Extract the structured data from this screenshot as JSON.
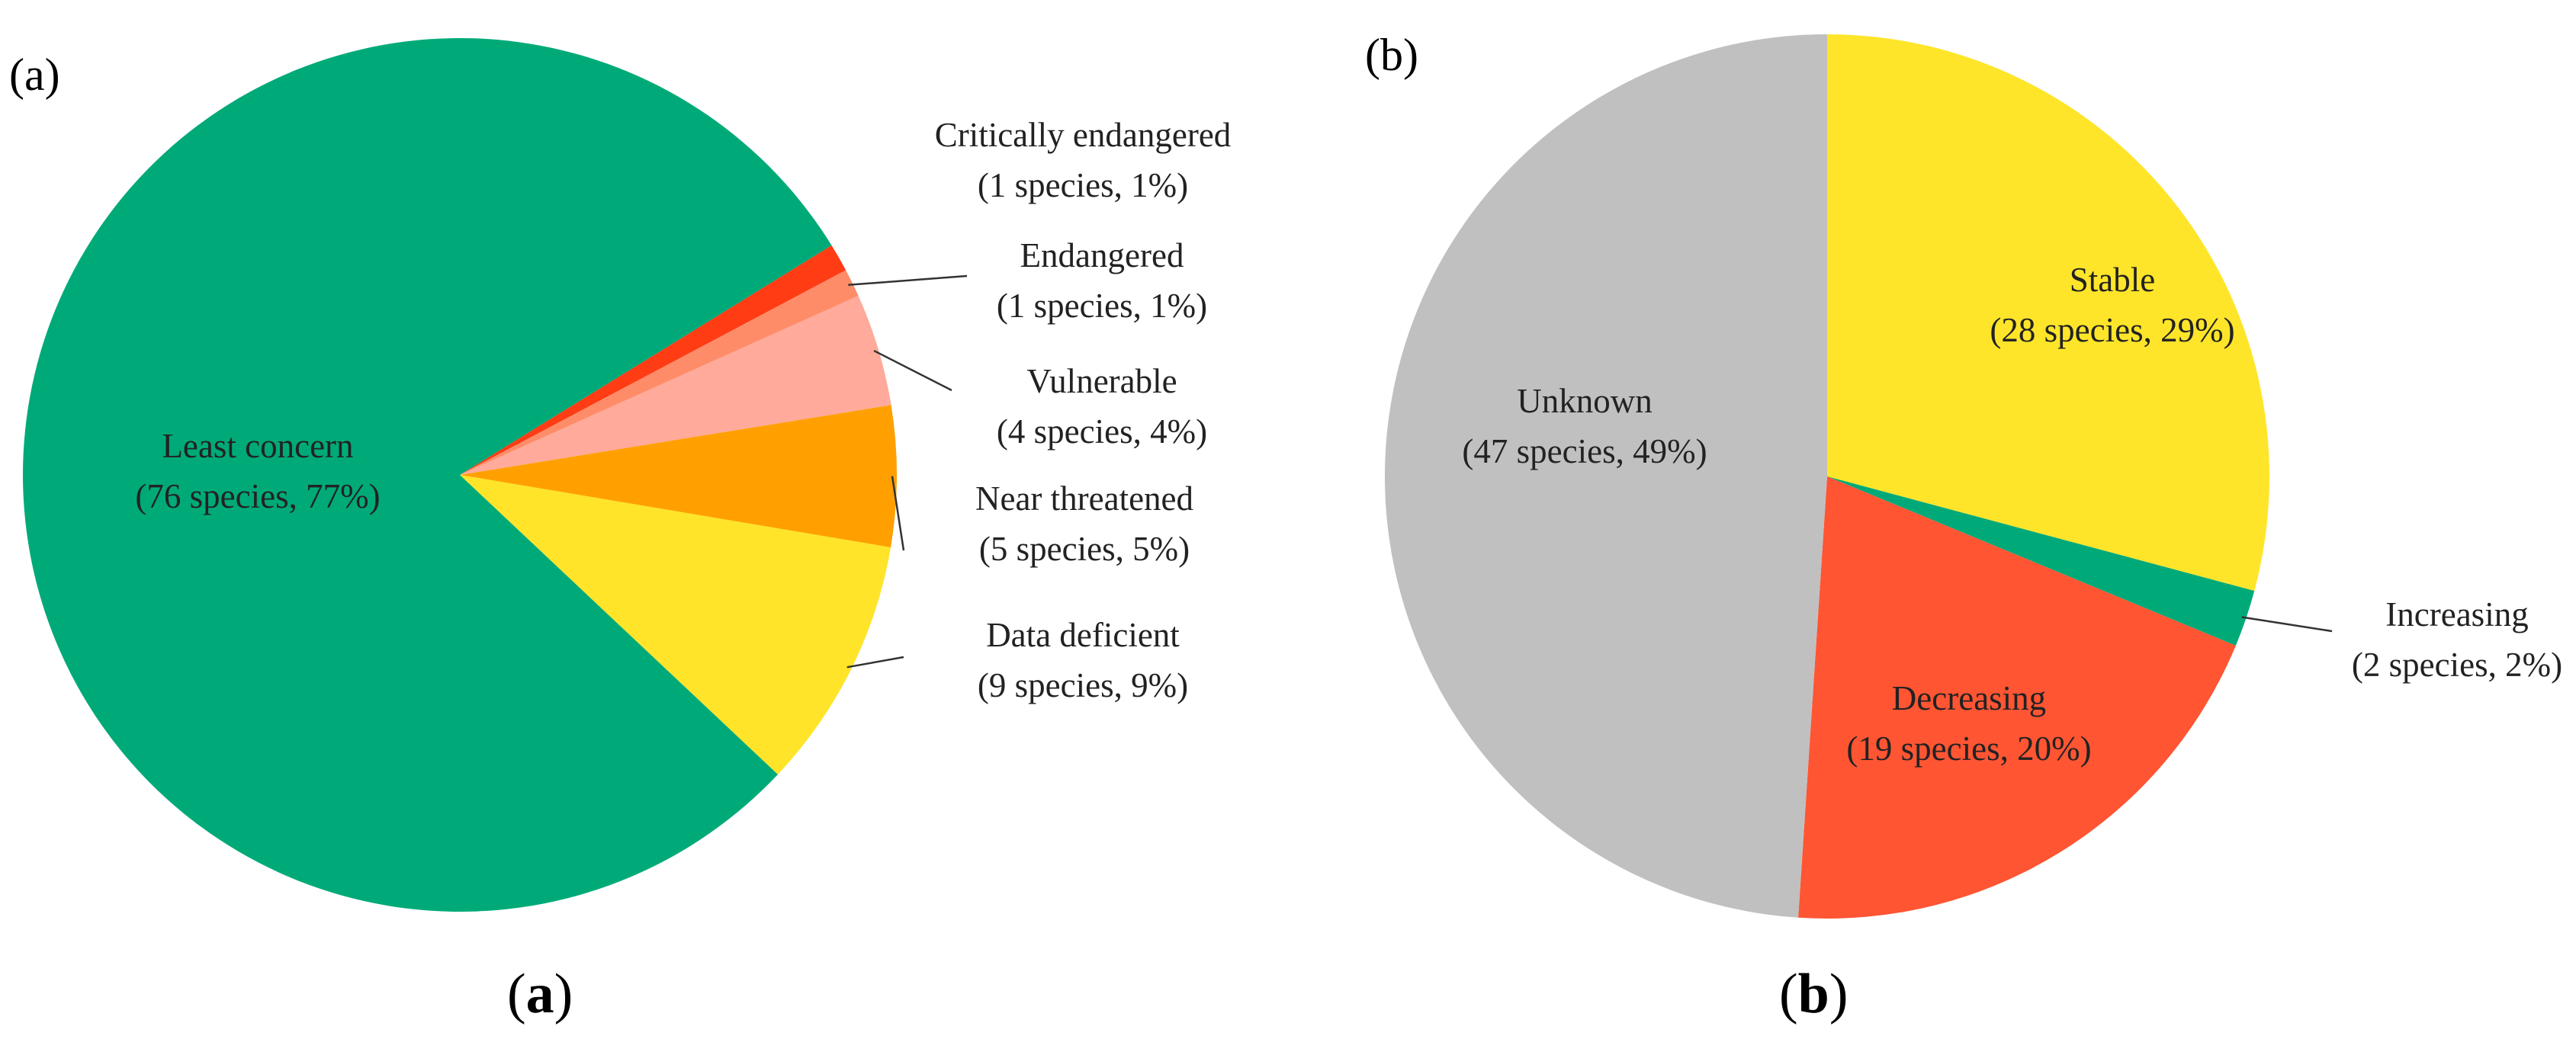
{
  "chart_data": [
    {
      "type": "pie",
      "panel_label": "(a)",
      "caption": {
        "open": "(",
        "letter": "a",
        "close": ")"
      },
      "slices": [
        {
          "name": "Critically endangered",
          "detail": "(1 species, 1%)",
          "value": 1,
          "percent": 1,
          "color": "#ff3c14"
        },
        {
          "name": "Endangered",
          "detail": "(1 species, 1%)",
          "value": 1,
          "percent": 1,
          "color": "#ff8c69"
        },
        {
          "name": "Vulnerable",
          "detail": "(4 species, 4%)",
          "value": 4,
          "percent": 4,
          "color": "#ffaa9a"
        },
        {
          "name": "Near threatened",
          "detail": "(5 species, 5%)",
          "value": 5,
          "percent": 5,
          "color": "#ffa000"
        },
        {
          "name": "Data deficient",
          "detail": "(9 species, 9%)",
          "value": 9,
          "percent": 9,
          "color": "#ffe42a"
        },
        {
          "name": "Least concern",
          "detail": "(76 species, 77%)",
          "value": 76,
          "percent": 77,
          "color": "#00aa78"
        }
      ]
    },
    {
      "type": "pie",
      "panel_label": "(b)",
      "caption": {
        "open": "(",
        "letter": "b",
        "close": ")"
      },
      "slices": [
        {
          "name": "Stable",
          "detail": "(28 species, 29%)",
          "value": 28,
          "percent": 29,
          "color": "#ffe52a"
        },
        {
          "name": "Increasing",
          "detail": "(2 species, 2%)",
          "value": 2,
          "percent": 2,
          "color": "#00aa78"
        },
        {
          "name": "Decreasing",
          "detail": "(19 species, 20%)",
          "value": 19,
          "percent": 20,
          "color": "#ff5533"
        },
        {
          "name": "Unknown",
          "detail": "(47 species, 49%)",
          "value": 47,
          "percent": 49,
          "color": "#c0c0c0"
        }
      ]
    }
  ]
}
